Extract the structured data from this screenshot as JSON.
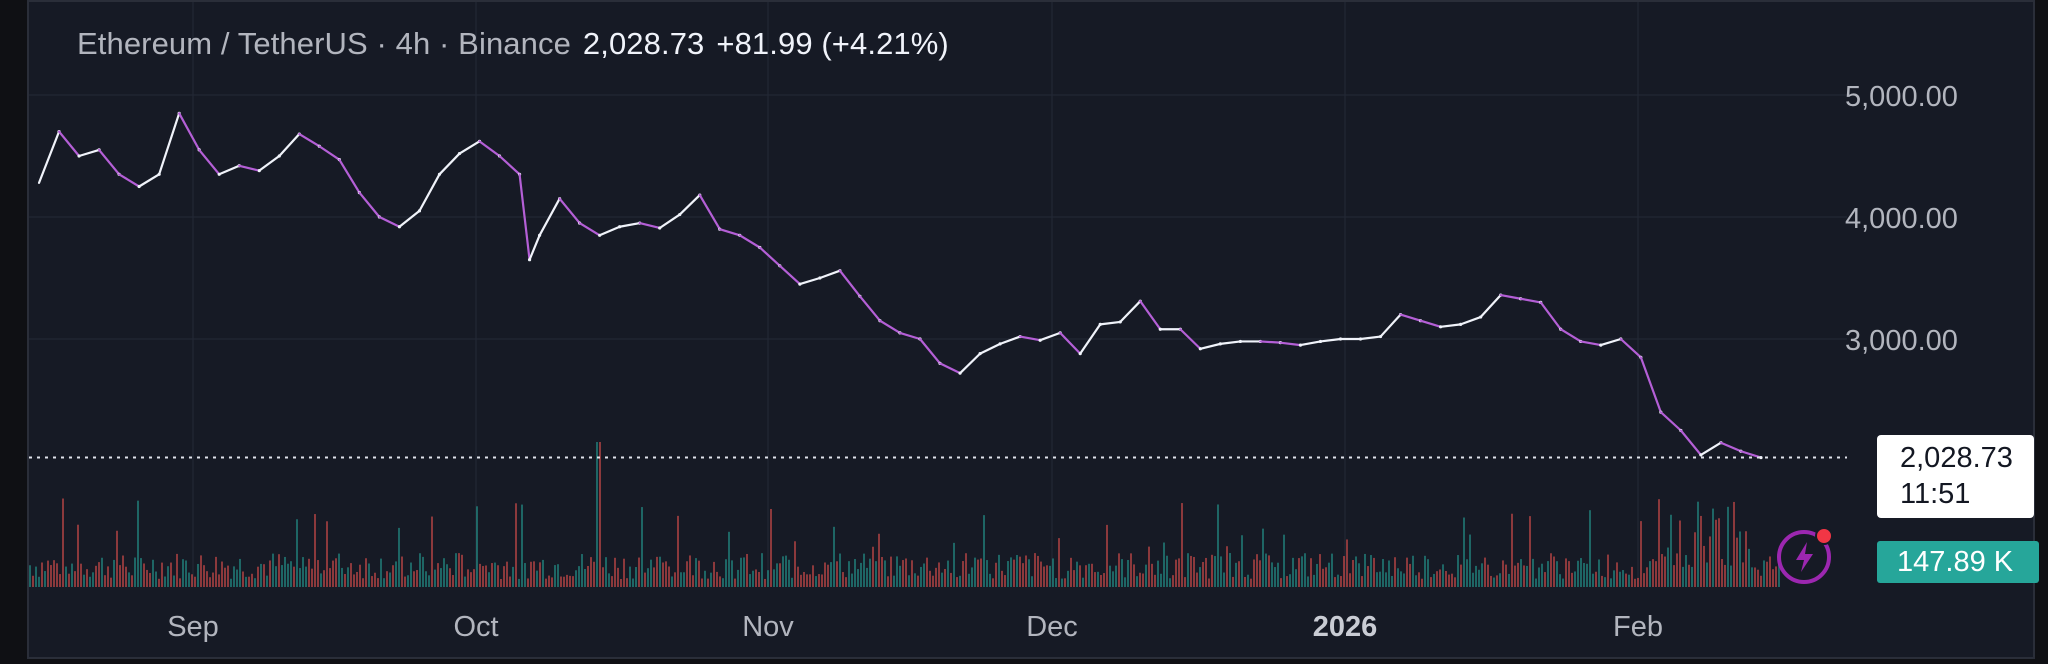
{
  "legend": {
    "symbol": "Ethereum / TetherUS · 4h · Binance",
    "last": "2,028.73",
    "change": "+81.99 (+4.21%)"
  },
  "price_axis_labels": [
    "5,000.00",
    "4,000.00",
    "3,000.00"
  ],
  "time_axis_labels": [
    "Sep",
    "Oct",
    "Nov",
    "Dec",
    "2026",
    "Feb"
  ],
  "current_price_tag": {
    "price": "2,028.73",
    "countdown": "11:51"
  },
  "volume_tag": "147.89 K",
  "icons": {
    "quick_action": "lightning-bolt-icon"
  },
  "colors": {
    "background": "#161a25",
    "grid": "#242936",
    "line_main": "#f0f3fa",
    "line_down": "#b45fd6",
    "volume_up": "#26a69a",
    "volume_down": "#ef5350",
    "bolt_accent": "#9c27b0",
    "badge_dot": "#f23645"
  },
  "chart_data": {
    "type": "line",
    "title": "Ethereum / TetherUS · 4h · Binance",
    "interval": "4h",
    "ylim": [
      1700,
      5300
    ],
    "yticks": [
      3000,
      4000,
      5000
    ],
    "x_tick_labels": [
      "Sep",
      "Oct",
      "Nov",
      "Dec",
      "2026",
      "Feb"
    ],
    "grid": true,
    "series": [
      {
        "name": "Ethereum / TetherUS",
        "x": [
          "2025-08-22",
          "2025-08-24",
          "2025-08-26",
          "2025-08-28",
          "2025-08-30",
          "2025-09-01",
          "2025-09-03",
          "2025-09-05",
          "2025-09-07",
          "2025-09-09",
          "2025-09-11",
          "2025-09-13",
          "2025-09-15",
          "2025-09-17",
          "2025-09-19",
          "2025-09-21",
          "2025-09-23",
          "2025-09-25",
          "2025-09-27",
          "2025-09-29",
          "2025-10-01",
          "2025-10-03",
          "2025-10-05",
          "2025-10-07",
          "2025-10-09",
          "2025-10-10",
          "2025-10-11",
          "2025-10-13",
          "2025-10-15",
          "2025-10-17",
          "2025-10-19",
          "2025-10-21",
          "2025-10-23",
          "2025-10-25",
          "2025-10-27",
          "2025-10-29",
          "2025-10-31",
          "2025-11-02",
          "2025-11-04",
          "2025-11-06",
          "2025-11-08",
          "2025-11-10",
          "2025-11-12",
          "2025-11-14",
          "2025-11-16",
          "2025-11-18",
          "2025-11-20",
          "2025-11-22",
          "2025-11-24",
          "2025-11-26",
          "2025-11-28",
          "2025-11-30",
          "2025-12-02",
          "2025-12-04",
          "2025-12-06",
          "2025-12-08",
          "2025-12-10",
          "2025-12-12",
          "2025-12-14",
          "2025-12-16",
          "2025-12-18",
          "2025-12-20",
          "2025-12-22",
          "2025-12-24",
          "2025-12-26",
          "2025-12-28",
          "2025-12-30",
          "2026-01-01",
          "2026-01-03",
          "2026-01-05",
          "2026-01-07",
          "2026-01-09",
          "2026-01-11",
          "2026-01-13",
          "2026-01-15",
          "2026-01-17",
          "2026-01-19",
          "2026-01-21",
          "2026-01-23",
          "2026-01-25",
          "2026-01-27",
          "2026-01-29",
          "2026-01-31",
          "2026-02-02",
          "2026-02-04",
          "2026-02-06",
          "2026-02-08",
          "2026-02-10"
        ],
        "y": [
          4280,
          4700,
          4500,
          4550,
          4350,
          4250,
          4350,
          4850,
          4550,
          4350,
          4420,
          4380,
          4500,
          4680,
          4580,
          4470,
          4200,
          4000,
          3920,
          4050,
          4350,
          4520,
          4620,
          4500,
          4350,
          3650,
          3850,
          4150,
          3950,
          3850,
          3920,
          3950,
          3910,
          4020,
          4180,
          3900,
          3850,
          3750,
          3600,
          3450,
          3500,
          3560,
          3350,
          3150,
          3050,
          3000,
          2800,
          2720,
          2880,
          2960,
          3020,
          2990,
          3050,
          2880,
          3120,
          3140,
          3310,
          3080,
          3080,
          2920,
          2960,
          2980,
          2980,
          2970,
          2950,
          2980,
          3000,
          3000,
          3020,
          3200,
          3150,
          3100,
          3120,
          3180,
          3360,
          3330,
          3300,
          3080,
          2980,
          2950,
          3000,
          2850,
          2400,
          2250,
          2050,
          2150,
          2080,
          2028
        ]
      }
    ],
    "last_value": 2028.73,
    "change": 81.99,
    "change_pct": 4.21,
    "volume_last": "147.89 K"
  }
}
